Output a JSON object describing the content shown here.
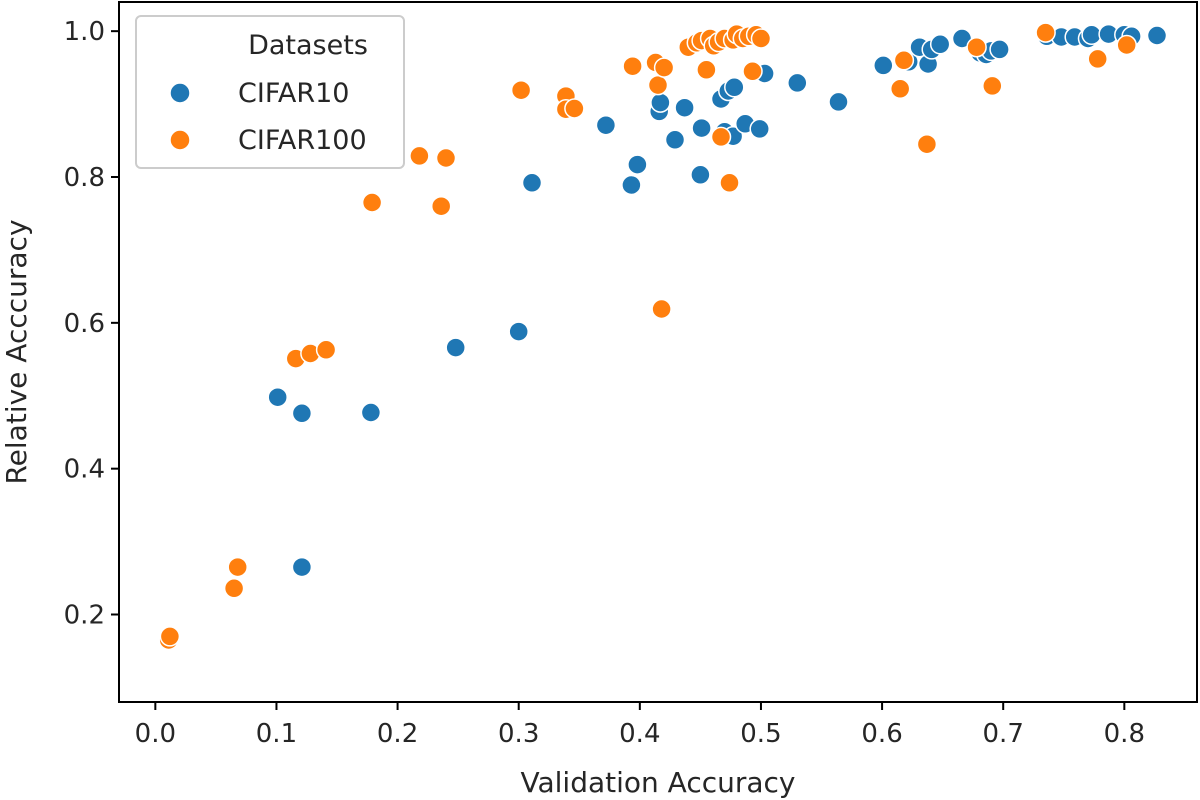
{
  "chart_data": {
    "type": "scatter",
    "title": "",
    "xlabel": "Validation Accuracy",
    "ylabel": "Relative Acccuracy",
    "xlim": [
      -0.03,
      0.86
    ],
    "ylim": [
      0.08,
      1.04
    ],
    "xticks": [
      0.0,
      0.1,
      0.2,
      0.3,
      0.4,
      0.5,
      0.6,
      0.7,
      0.8
    ],
    "xtick_labels": [
      "0.0",
      "0.1",
      "0.2",
      "0.3",
      "0.4",
      "0.5",
      "0.6",
      "0.7",
      "0.8"
    ],
    "yticks": [
      0.2,
      0.4,
      0.6,
      0.8,
      1.0
    ],
    "ytick_labels": [
      "0.2",
      "0.4",
      "0.6",
      "0.8",
      "1.0"
    ],
    "grid": false,
    "legend": {
      "title": "Datasets",
      "placement": "top-left",
      "entries": [
        "CIFAR10",
        "CIFAR100"
      ]
    },
    "series": [
      {
        "name": "CIFAR10",
        "color": "#1f77b4",
        "points": [
          [
            0.121,
            0.265
          ],
          [
            0.101,
            0.498
          ],
          [
            0.121,
            0.476
          ],
          [
            0.178,
            0.477
          ],
          [
            0.248,
            0.566
          ],
          [
            0.3,
            0.588
          ],
          [
            0.311,
            0.792
          ],
          [
            0.372,
            0.871
          ],
          [
            0.393,
            0.789
          ],
          [
            0.398,
            0.817
          ],
          [
            0.416,
            0.89
          ],
          [
            0.417,
            0.902
          ],
          [
            0.429,
            0.851
          ],
          [
            0.437,
            0.895
          ],
          [
            0.45,
            0.803
          ],
          [
            0.451,
            0.867
          ],
          [
            0.467,
            0.907
          ],
          [
            0.47,
            0.862
          ],
          [
            0.473,
            0.918
          ],
          [
            0.477,
            0.856
          ],
          [
            0.478,
            0.923
          ],
          [
            0.487,
            0.873
          ],
          [
            0.499,
            0.866
          ],
          [
            0.503,
            0.942
          ],
          [
            0.53,
            0.929
          ],
          [
            0.564,
            0.903
          ],
          [
            0.601,
            0.953
          ],
          [
            0.622,
            0.958
          ],
          [
            0.631,
            0.978
          ],
          [
            0.638,
            0.955
          ],
          [
            0.641,
            0.975
          ],
          [
            0.648,
            0.982
          ],
          [
            0.666,
            0.99
          ],
          [
            0.681,
            0.97
          ],
          [
            0.686,
            0.968
          ],
          [
            0.69,
            0.973
          ],
          [
            0.697,
            0.975
          ],
          [
            0.736,
            0.993
          ],
          [
            0.748,
            0.992
          ],
          [
            0.759,
            0.992
          ],
          [
            0.77,
            0.99
          ],
          [
            0.773,
            0.995
          ],
          [
            0.787,
            0.996
          ],
          [
            0.8,
            0.995
          ],
          [
            0.806,
            0.993
          ],
          [
            0.827,
            0.994
          ]
        ]
      },
      {
        "name": "CIFAR100",
        "color": "#ff7f0e",
        "points": [
          [
            0.011,
            0.165
          ],
          [
            0.012,
            0.17
          ],
          [
            0.065,
            0.236
          ],
          [
            0.068,
            0.265
          ],
          [
            0.116,
            0.551
          ],
          [
            0.128,
            0.558
          ],
          [
            0.141,
            0.563
          ],
          [
            0.179,
            0.765
          ],
          [
            0.218,
            0.829
          ],
          [
            0.236,
            0.76
          ],
          [
            0.24,
            0.826
          ],
          [
            0.302,
            0.919
          ],
          [
            0.339,
            0.911
          ],
          [
            0.339,
            0.893
          ],
          [
            0.346,
            0.894
          ],
          [
            0.394,
            0.952
          ],
          [
            0.413,
            0.957
          ],
          [
            0.415,
            0.926
          ],
          [
            0.418,
            0.619
          ],
          [
            0.42,
            0.95
          ],
          [
            0.44,
            0.978
          ],
          [
            0.447,
            0.984
          ],
          [
            0.451,
            0.987
          ],
          [
            0.455,
            0.947
          ],
          [
            0.458,
            0.99
          ],
          [
            0.461,
            0.98
          ],
          [
            0.465,
            0.985
          ],
          [
            0.467,
            0.855
          ],
          [
            0.47,
            0.99
          ],
          [
            0.474,
            0.792
          ],
          [
            0.477,
            0.988
          ],
          [
            0.48,
            0.996
          ],
          [
            0.485,
            0.99
          ],
          [
            0.49,
            0.993
          ],
          [
            0.493,
            0.945
          ],
          [
            0.496,
            0.995
          ],
          [
            0.5,
            0.99
          ],
          [
            0.615,
            0.921
          ],
          [
            0.618,
            0.96
          ],
          [
            0.637,
            0.845
          ],
          [
            0.678,
            0.978
          ],
          [
            0.691,
            0.925
          ],
          [
            0.735,
            0.998
          ],
          [
            0.778,
            0.962
          ],
          [
            0.802,
            0.981
          ]
        ]
      }
    ]
  }
}
